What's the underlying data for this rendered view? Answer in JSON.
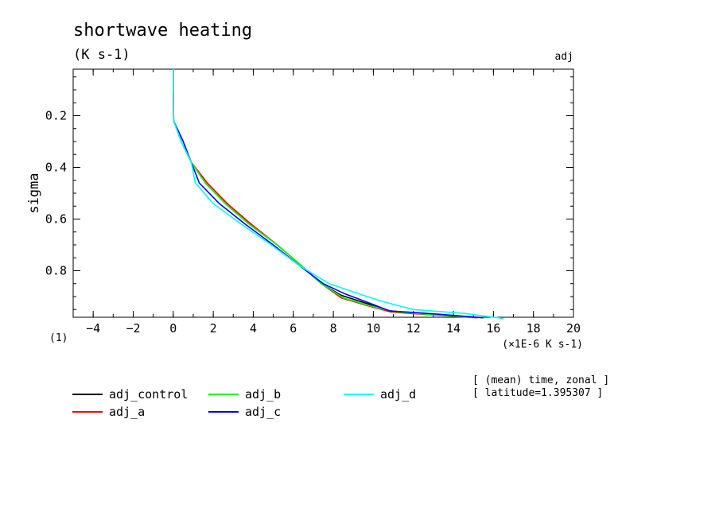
{
  "chart_data": {
    "type": "line",
    "title": "shortwave heating",
    "units": "(K s-1)",
    "run_label": "adj",
    "ylabel": "sigma",
    "y_nondim": "(1)",
    "xlabel": "(×1E-6 K s-1)",
    "xlim": [
      -5,
      20
    ],
    "ylim": [
      0.98,
      0.02
    ],
    "y_reversed": true,
    "grid": false,
    "x_ticks": [
      "-4",
      "-2",
      "0",
      "2",
      "4",
      "6",
      "8",
      "10",
      "12",
      "14",
      "16",
      "18",
      "20"
    ],
    "y_ticks": [
      "0.2",
      "0.4",
      "0.6",
      "0.8"
    ],
    "legend_placement": "bottom",
    "annotations": [
      "[ (mean) time, zonal ]",
      "[ latitude=1.395307 ]"
    ],
    "series": [
      {
        "name": "adj_control",
        "color": "#000000",
        "points": [
          [
            0.0,
            0.02
          ],
          [
            0.0,
            0.1
          ],
          [
            0.02,
            0.22
          ],
          [
            0.4,
            0.3
          ],
          [
            0.9,
            0.38
          ],
          [
            1.6,
            0.46
          ],
          [
            2.6,
            0.54
          ],
          [
            3.8,
            0.62
          ],
          [
            5.2,
            0.7
          ],
          [
            6.4,
            0.78
          ],
          [
            7.4,
            0.85
          ],
          [
            8.4,
            0.895
          ],
          [
            9.6,
            0.925
          ],
          [
            10.8,
            0.955
          ],
          [
            13.0,
            0.97
          ],
          [
            14.8,
            0.98
          ]
        ]
      },
      {
        "name": "adj_a",
        "color": "#ff0000",
        "points": [
          [
            0.0,
            0.02
          ],
          [
            0.0,
            0.1
          ],
          [
            0.02,
            0.22
          ],
          [
            0.4,
            0.3
          ],
          [
            0.9,
            0.38
          ],
          [
            1.7,
            0.46
          ],
          [
            2.7,
            0.54
          ],
          [
            3.9,
            0.62
          ],
          [
            5.2,
            0.7
          ],
          [
            6.4,
            0.78
          ],
          [
            7.4,
            0.85
          ],
          [
            8.4,
            0.905
          ],
          [
            9.7,
            0.935
          ],
          [
            10.9,
            0.96
          ],
          [
            13.2,
            0.972
          ],
          [
            15.2,
            0.982
          ]
        ]
      },
      {
        "name": "adj_b",
        "color": "#00ff00",
        "points": [
          [
            0.0,
            0.02
          ],
          [
            0.0,
            0.1
          ],
          [
            0.02,
            0.22
          ],
          [
            0.4,
            0.3
          ],
          [
            0.9,
            0.38
          ],
          [
            1.6,
            0.46
          ],
          [
            2.6,
            0.54
          ],
          [
            3.8,
            0.62
          ],
          [
            5.2,
            0.7
          ],
          [
            6.4,
            0.78
          ],
          [
            7.4,
            0.85
          ],
          [
            8.5,
            0.905
          ],
          [
            9.8,
            0.935
          ],
          [
            11.0,
            0.958
          ],
          [
            13.3,
            0.972
          ],
          [
            15.5,
            0.982
          ]
        ]
      },
      {
        "name": "adj_c",
        "color": "#0000ff",
        "points": [
          [
            0.0,
            0.02
          ],
          [
            0.0,
            0.1
          ],
          [
            0.02,
            0.22
          ],
          [
            0.5,
            0.3
          ],
          [
            0.9,
            0.38
          ],
          [
            1.3,
            0.46
          ],
          [
            2.3,
            0.54
          ],
          [
            3.6,
            0.62
          ],
          [
            5.0,
            0.7
          ],
          [
            6.3,
            0.78
          ],
          [
            7.5,
            0.85
          ],
          [
            8.6,
            0.89
          ],
          [
            9.8,
            0.925
          ],
          [
            10.8,
            0.955
          ],
          [
            13.2,
            0.968
          ],
          [
            15.5,
            0.982
          ]
        ]
      },
      {
        "name": "adj_d",
        "color": "#00ffff",
        "points": [
          [
            0.0,
            0.02
          ],
          [
            0.0,
            0.1
          ],
          [
            0.02,
            0.22
          ],
          [
            0.4,
            0.3
          ],
          [
            0.9,
            0.38
          ],
          [
            1.1,
            0.46
          ],
          [
            2.0,
            0.54
          ],
          [
            3.4,
            0.62
          ],
          [
            4.9,
            0.7
          ],
          [
            6.3,
            0.78
          ],
          [
            7.8,
            0.85
          ],
          [
            9.3,
            0.89
          ],
          [
            10.5,
            0.92
          ],
          [
            12.0,
            0.95
          ],
          [
            14.5,
            0.965
          ],
          [
            16.5,
            0.985
          ]
        ]
      }
    ]
  }
}
